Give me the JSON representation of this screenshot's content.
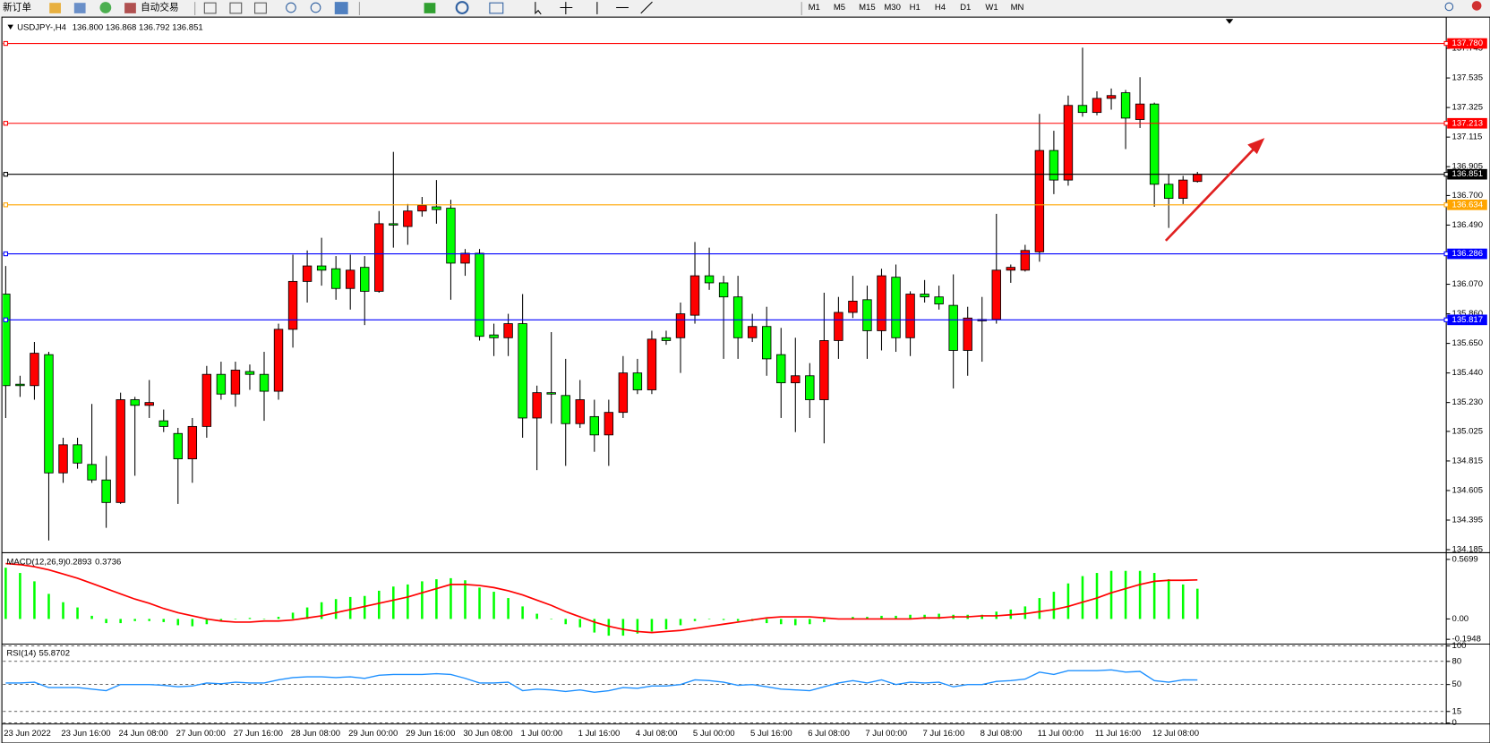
{
  "toolbar": {
    "new_order": "新订单",
    "auto_trading": "自动交易",
    "timeframes": [
      "M1",
      "M5",
      "M15",
      "M30",
      "H1",
      "H4",
      "D1",
      "W1",
      "MN"
    ]
  },
  "chart_data": [
    {
      "type": "candlestick",
      "title": "USDJPY-,H4",
      "ohlc_labels": [
        "136.800",
        "136.868",
        "136.792",
        "136.851"
      ],
      "categories": [
        "23 Jun 2022",
        null,
        null,
        null,
        "23 Jun 16:00",
        null,
        null,
        null,
        "24 Jun 08:00",
        null,
        null,
        null,
        "27 Jun 00:00",
        null,
        null,
        null,
        "27 Jun 16:00",
        null,
        null,
        null,
        "28 Jun 08:00",
        null,
        null,
        null,
        "29 Jun 00:00",
        null,
        null,
        null,
        "29 Jun 16:00",
        null,
        null,
        null,
        "30 Jun 08:00",
        null,
        null,
        null,
        "1 Jul 00:00",
        null,
        null,
        null,
        "1 Jul 16:00",
        null,
        null,
        null,
        "4 Jul 08:00",
        null,
        null,
        null,
        "5 Jul 00:00",
        null,
        null,
        null,
        "5 Jul 16:00",
        null,
        null,
        null,
        "6 Jul 08:00",
        null,
        null,
        null,
        "7 Jul 00:00",
        null,
        null,
        null,
        "7 Jul 16:00",
        null,
        null,
        null,
        "8 Jul 08:00",
        null,
        null,
        null,
        "11 Jul 00:00",
        null,
        null,
        null,
        "11 Jul 16:00",
        null,
        null,
        null,
        "12 Jul 08:00",
        null,
        null,
        null
      ],
      "open": [
        136.0,
        135.36,
        135.35,
        135.57,
        134.73,
        134.93,
        134.79,
        134.68,
        134.52,
        135.25,
        135.21,
        135.1,
        135.01,
        134.83,
        135.06,
        135.43,
        135.29,
        135.45,
        135.43,
        135.31,
        135.75,
        136.09,
        136.2,
        136.18,
        136.04,
        136.19,
        136.02,
        136.5,
        136.48,
        136.59,
        136.62,
        136.61,
        136.22,
        136.29,
        135.71,
        135.69,
        135.79,
        135.12,
        135.3,
        135.28,
        135.08,
        135.13,
        135.0,
        135.16,
        135.44,
        135.32,
        135.69,
        135.69,
        135.85,
        136.13,
        136.08,
        135.98,
        135.69,
        135.77,
        135.57,
        135.37,
        135.42,
        135.25,
        135.67,
        135.87,
        135.96,
        135.74,
        136.12,
        135.69,
        136.0,
        135.98,
        135.92,
        135.6,
        135.81,
        135.82,
        136.17,
        136.17,
        136.3,
        137.02,
        136.81,
        137.34,
        137.29,
        137.39,
        137.43,
        137.24,
        137.35,
        136.78,
        136.68,
        136.8
      ],
      "high": [
        136.2,
        135.42,
        135.66,
        135.59,
        134.98,
        134.98,
        135.22,
        134.85,
        135.3,
        135.27,
        135.39,
        135.18,
        135.05,
        135.12,
        135.49,
        135.52,
        135.52,
        135.5,
        135.59,
        135.79,
        136.28,
        136.31,
        136.4,
        136.27,
        136.28,
        136.27,
        136.59,
        137.01,
        136.64,
        136.69,
        136.81,
        136.67,
        136.32,
        136.32,
        135.79,
        135.86,
        136.0,
        135.35,
        135.73,
        135.54,
        135.39,
        135.25,
        135.25,
        135.56,
        135.54,
        135.74,
        135.74,
        135.94,
        136.37,
        136.33,
        136.13,
        136.13,
        135.86,
        135.91,
        135.76,
        135.69,
        135.51,
        136.01,
        135.98,
        136.13,
        136.06,
        136.18,
        136.21,
        136.02,
        136.1,
        136.06,
        136.14,
        135.91,
        135.98,
        136.57,
        136.21,
        136.35,
        137.28,
        137.16,
        137.41,
        137.75,
        137.44,
        137.46,
        137.45,
        137.54,
        137.36,
        136.85,
        136.84,
        136.868
      ],
      "low": [
        135.12,
        135.27,
        135.25,
        134.25,
        134.66,
        134.76,
        134.66,
        134.34,
        134.51,
        134.71,
        135.12,
        135.02,
        134.51,
        134.66,
        134.98,
        135.25,
        135.2,
        135.32,
        135.1,
        135.25,
        135.62,
        135.94,
        136.06,
        135.96,
        135.89,
        135.78,
        136.01,
        136.33,
        136.35,
        136.55,
        136.5,
        135.96,
        136.13,
        135.67,
        135.56,
        135.56,
        134.98,
        134.75,
        135.08,
        134.78,
        135.05,
        134.88,
        134.78,
        135.12,
        135.29,
        135.29,
        135.64,
        135.44,
        135.79,
        136.03,
        135.54,
        135.54,
        135.66,
        135.42,
        135.12,
        135.02,
        135.12,
        134.94,
        135.54,
        135.83,
        135.54,
        135.6,
        135.59,
        135.56,
        135.94,
        135.89,
        135.33,
        135.42,
        135.52,
        135.79,
        136.08,
        136.16,
        136.23,
        136.71,
        136.77,
        137.26,
        137.27,
        137.31,
        137.03,
        137.18,
        136.62,
        136.47,
        136.64,
        136.792
      ],
      "close": [
        135.35,
        135.35,
        135.58,
        134.73,
        134.93,
        134.8,
        134.68,
        134.52,
        135.25,
        135.21,
        135.23,
        135.06,
        134.83,
        135.06,
        135.43,
        135.29,
        135.46,
        135.43,
        135.31,
        135.75,
        136.09,
        136.2,
        136.17,
        136.04,
        136.17,
        136.02,
        136.5,
        136.49,
        136.59,
        136.63,
        136.6,
        136.22,
        136.29,
        135.7,
        135.69,
        135.79,
        135.12,
        135.3,
        135.29,
        135.08,
        135.25,
        135.0,
        135.16,
        135.44,
        135.32,
        135.68,
        135.67,
        135.86,
        136.13,
        136.08,
        135.98,
        135.69,
        135.77,
        135.54,
        135.37,
        135.42,
        135.25,
        135.67,
        135.87,
        135.95,
        135.74,
        136.13,
        135.69,
        136.0,
        135.98,
        135.93,
        135.6,
        135.83,
        135.82,
        136.17,
        136.19,
        136.31,
        137.02,
        136.81,
        137.34,
        137.29,
        137.39,
        137.41,
        137.25,
        137.35,
        136.78,
        136.68,
        136.81,
        136.851
      ],
      "up_color": "#ff0000",
      "down_color": "#00ff00",
      "ylim": [
        134.17,
        137.94
      ],
      "yticks": [
        137.745,
        137.535,
        137.325,
        137.115,
        136.905,
        {
          "value": 136.7,
          "label": "136.700"
        },
        {
          "value": 136.49,
          "label": "136.490"
        },
        {
          "value": 136.07,
          "label": "136.070"
        },
        {
          "value": 135.86,
          "label": "135.860"
        },
        {
          "value": 135.65,
          "label": "135.650"
        },
        {
          "value": 135.44,
          "label": "135.440"
        },
        {
          "value": 135.23,
          "label": "135.230"
        },
        135.025,
        134.815,
        134.605,
        134.395,
        134.185
      ],
      "levels": [
        {
          "value": 137.78,
          "label": "137.780",
          "color": "#ff0000"
        },
        {
          "value": 137.213,
          "label": "137.213",
          "color": "#ff0000"
        },
        {
          "value": 136.851,
          "label": "136.851",
          "color": "#000000"
        },
        {
          "value": 136.634,
          "label": "136.634",
          "color": "#ffa500"
        },
        {
          "value": 136.286,
          "label": "136.286",
          "color": "#0000ff"
        },
        {
          "value": 135.817,
          "label": "135.817",
          "color": "#0000ff"
        }
      ],
      "grid": false
    },
    {
      "type": "combo",
      "title": "MACD(12,26,9)",
      "series": [
        {
          "mark": "bar",
          "color": "#00ff00",
          "values": [
            0.49,
            0.44,
            0.36,
            0.24,
            0.16,
            0.11,
            0.03,
            -0.04,
            -0.04,
            -0.02,
            -0.02,
            -0.03,
            -0.06,
            -0.07,
            -0.05,
            -0.02,
            0.0,
            0.01,
            0.0,
            0.02,
            0.06,
            0.11,
            0.16,
            0.19,
            0.21,
            0.22,
            0.27,
            0.31,
            0.33,
            0.36,
            0.38,
            0.39,
            0.37,
            0.3,
            0.26,
            0.2,
            0.12,
            0.05,
            0.0,
            -0.05,
            -0.08,
            -0.13,
            -0.16,
            -0.16,
            -0.14,
            -0.12,
            -0.1,
            -0.06,
            -0.02,
            0.0,
            -0.01,
            -0.02,
            -0.02,
            -0.04,
            -0.05,
            -0.06,
            -0.05,
            -0.03,
            0.0,
            0.02,
            0.02,
            0.03,
            0.03,
            0.04,
            0.04,
            0.05,
            0.04,
            0.04,
            0.04,
            0.07,
            0.09,
            0.12,
            0.2,
            0.26,
            0.34,
            0.41,
            0.44,
            0.46,
            0.46,
            0.46,
            0.44,
            0.38,
            0.33,
            0.2893
          ]
        },
        {
          "mark": "line",
          "color": "#ff0000",
          "values": [
            0.53,
            0.52,
            0.5,
            0.47,
            0.43,
            0.39,
            0.34,
            0.29,
            0.24,
            0.19,
            0.15,
            0.1,
            0.06,
            0.03,
            0.0,
            -0.02,
            -0.03,
            -0.03,
            -0.02,
            -0.02,
            -0.01,
            0.01,
            0.03,
            0.06,
            0.09,
            0.12,
            0.15,
            0.18,
            0.21,
            0.25,
            0.29,
            0.33,
            0.33,
            0.32,
            0.3,
            0.27,
            0.23,
            0.18,
            0.13,
            0.07,
            0.02,
            -0.03,
            -0.07,
            -0.1,
            -0.12,
            -0.13,
            -0.12,
            -0.11,
            -0.09,
            -0.07,
            -0.05,
            -0.03,
            -0.01,
            0.01,
            0.02,
            0.02,
            0.02,
            0.01,
            0.0,
            0.0,
            0.0,
            0.0,
            0.0,
            0.0,
            0.01,
            0.01,
            0.02,
            0.02,
            0.03,
            0.03,
            0.04,
            0.05,
            0.07,
            0.09,
            0.12,
            0.16,
            0.2,
            0.25,
            0.29,
            0.33,
            0.36,
            0.37,
            0.37,
            0.3736
          ]
        }
      ],
      "ylim": [
        -0.1948,
        0.5699
      ],
      "yticks": [
        0.5699,
        {
          "value": 0,
          "label": "0.00"
        },
        -0.1948
      ],
      "grid": false
    },
    {
      "type": "line",
      "title": "RSI(14)",
      "color": "#1e90ff",
      "values": [
        52,
        52,
        53,
        46,
        46,
        46,
        44,
        42,
        50,
        50,
        50,
        49,
        47,
        48,
        52,
        51,
        53,
        52,
        52,
        56,
        59,
        60,
        60,
        59,
        60,
        58,
        62,
        63,
        63,
        63,
        64,
        63,
        58,
        52,
        52,
        53,
        42,
        44,
        43,
        41,
        43,
        40,
        42,
        46,
        45,
        48,
        48,
        50,
        56,
        55,
        53,
        49,
        50,
        47,
        44,
        43,
        42,
        47,
        52,
        55,
        52,
        56,
        50,
        53,
        52,
        53,
        47,
        50,
        50,
        54,
        55,
        57,
        66,
        63,
        68,
        68,
        68,
        69,
        66,
        67,
        55,
        53,
        56,
        55.8702
      ],
      "ylim": [
        0,
        100
      ],
      "yticks": [
        100,
        80,
        50,
        15,
        0
      ],
      "grid": true
    }
  ]
}
